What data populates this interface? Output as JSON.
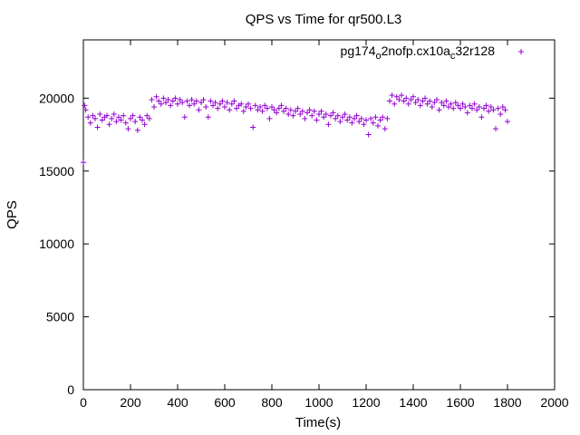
{
  "chart_data": {
    "type": "scatter",
    "title": "QPS vs Time for qr500.L3",
    "xlabel": "Time(s)",
    "ylabel": "QPS",
    "xlim": [
      0,
      2000
    ],
    "ylim": [
      0,
      24000
    ],
    "x_ticks": [
      0,
      200,
      400,
      600,
      800,
      1000,
      1200,
      1400,
      1600,
      1800,
      2000
    ],
    "y_ticks": [
      0,
      5000,
      10000,
      15000,
      20000
    ],
    "grid": false,
    "legend_position": "top-right",
    "series": [
      {
        "name": "pg174_o2nofp.cx10a_c32r128",
        "legend_parts": [
          {
            "text": "pg174",
            "sub": false
          },
          {
            "text": "o",
            "sub": true
          },
          {
            "text": "2nofp.cx10a",
            "sub": false
          },
          {
            "text": "c",
            "sub": true
          },
          {
            "text": "32r128",
            "sub": false
          }
        ],
        "color": "#9400d3",
        "marker": "plus",
        "points": [
          [
            0,
            15600
          ],
          [
            5,
            19500
          ],
          [
            10,
            19200
          ],
          [
            20,
            18700
          ],
          [
            30,
            18300
          ],
          [
            40,
            18800
          ],
          [
            50,
            18600
          ],
          [
            60,
            18000
          ],
          [
            70,
            18900
          ],
          [
            80,
            18500
          ],
          [
            90,
            18700
          ],
          [
            100,
            18800
          ],
          [
            110,
            18200
          ],
          [
            120,
            18600
          ],
          [
            130,
            18900
          ],
          [
            140,
            18400
          ],
          [
            150,
            18700
          ],
          [
            160,
            18500
          ],
          [
            170,
            18800
          ],
          [
            180,
            18300
          ],
          [
            190,
            17900
          ],
          [
            200,
            18600
          ],
          [
            210,
            18800
          ],
          [
            220,
            18400
          ],
          [
            230,
            17800
          ],
          [
            240,
            18700
          ],
          [
            250,
            18500
          ],
          [
            260,
            18200
          ],
          [
            270,
            18800
          ],
          [
            280,
            18600
          ],
          [
            290,
            19900
          ],
          [
            300,
            19400
          ],
          [
            310,
            20100
          ],
          [
            320,
            19800
          ],
          [
            330,
            19600
          ],
          [
            340,
            20000
          ],
          [
            350,
            19700
          ],
          [
            360,
            19900
          ],
          [
            370,
            19500
          ],
          [
            380,
            19800
          ],
          [
            390,
            20000
          ],
          [
            400,
            19600
          ],
          [
            410,
            19900
          ],
          [
            420,
            19700
          ],
          [
            430,
            18700
          ],
          [
            440,
            19800
          ],
          [
            450,
            19500
          ],
          [
            460,
            19900
          ],
          [
            470,
            19600
          ],
          [
            480,
            19800
          ],
          [
            490,
            19200
          ],
          [
            500,
            19700
          ],
          [
            510,
            19900
          ],
          [
            520,
            19400
          ],
          [
            530,
            18700
          ],
          [
            540,
            19800
          ],
          [
            550,
            19500
          ],
          [
            560,
            19700
          ],
          [
            570,
            19300
          ],
          [
            580,
            19600
          ],
          [
            590,
            19800
          ],
          [
            600,
            19400
          ],
          [
            610,
            19700
          ],
          [
            620,
            19200
          ],
          [
            630,
            19600
          ],
          [
            640,
            19800
          ],
          [
            650,
            19300
          ],
          [
            660,
            19500
          ],
          [
            670,
            19600
          ],
          [
            680,
            19100
          ],
          [
            690,
            19400
          ],
          [
            700,
            19600
          ],
          [
            710,
            19300
          ],
          [
            720,
            18000
          ],
          [
            730,
            19500
          ],
          [
            740,
            19200
          ],
          [
            750,
            19400
          ],
          [
            760,
            19100
          ],
          [
            770,
            19500
          ],
          [
            780,
            19300
          ],
          [
            790,
            18600
          ],
          [
            800,
            19400
          ],
          [
            810,
            19200
          ],
          [
            820,
            19000
          ],
          [
            830,
            19300
          ],
          [
            840,
            19500
          ],
          [
            850,
            19100
          ],
          [
            860,
            19300
          ],
          [
            870,
            18900
          ],
          [
            880,
            19200
          ],
          [
            890,
            18800
          ],
          [
            900,
            19100
          ],
          [
            910,
            19300
          ],
          [
            920,
            18900
          ],
          [
            930,
            19100
          ],
          [
            940,
            18600
          ],
          [
            950,
            19000
          ],
          [
            960,
            19200
          ],
          [
            970,
            18800
          ],
          [
            980,
            19100
          ],
          [
            990,
            18500
          ],
          [
            1000,
            18900
          ],
          [
            1010,
            19100
          ],
          [
            1020,
            18700
          ],
          [
            1030,
            18900
          ],
          [
            1040,
            18200
          ],
          [
            1050,
            18800
          ],
          [
            1060,
            19000
          ],
          [
            1070,
            18600
          ],
          [
            1080,
            18800
          ],
          [
            1090,
            18400
          ],
          [
            1100,
            18700
          ],
          [
            1110,
            18900
          ],
          [
            1120,
            18500
          ],
          [
            1130,
            18700
          ],
          [
            1140,
            18300
          ],
          [
            1150,
            18600
          ],
          [
            1160,
            18800
          ],
          [
            1170,
            18400
          ],
          [
            1180,
            18600
          ],
          [
            1190,
            18200
          ],
          [
            1200,
            18500
          ],
          [
            1210,
            17500
          ],
          [
            1220,
            18600
          ],
          [
            1230,
            18300
          ],
          [
            1240,
            18700
          ],
          [
            1250,
            18100
          ],
          [
            1260,
            18500
          ],
          [
            1270,
            18700
          ],
          [
            1280,
            17900
          ],
          [
            1290,
            18600
          ],
          [
            1300,
            19800
          ],
          [
            1310,
            20200
          ],
          [
            1320,
            19600
          ],
          [
            1330,
            20100
          ],
          [
            1340,
            19900
          ],
          [
            1350,
            20200
          ],
          [
            1360,
            19800
          ],
          [
            1370,
            20000
          ],
          [
            1380,
            19600
          ],
          [
            1390,
            19900
          ],
          [
            1400,
            20100
          ],
          [
            1410,
            19700
          ],
          [
            1420,
            19900
          ],
          [
            1430,
            19500
          ],
          [
            1440,
            19800
          ],
          [
            1450,
            20000
          ],
          [
            1460,
            19600
          ],
          [
            1470,
            19800
          ],
          [
            1480,
            19400
          ],
          [
            1490,
            19700
          ],
          [
            1500,
            19900
          ],
          [
            1510,
            19200
          ],
          [
            1520,
            19700
          ],
          [
            1530,
            19500
          ],
          [
            1540,
            19800
          ],
          [
            1550,
            19400
          ],
          [
            1560,
            19600
          ],
          [
            1570,
            19300
          ],
          [
            1580,
            19700
          ],
          [
            1590,
            19500
          ],
          [
            1600,
            19300
          ],
          [
            1610,
            19600
          ],
          [
            1620,
            19400
          ],
          [
            1630,
            19000
          ],
          [
            1640,
            19500
          ],
          [
            1650,
            19300
          ],
          [
            1660,
            19600
          ],
          [
            1670,
            19200
          ],
          [
            1680,
            19400
          ],
          [
            1690,
            18700
          ],
          [
            1700,
            19300
          ],
          [
            1710,
            19500
          ],
          [
            1720,
            19100
          ],
          [
            1730,
            19400
          ],
          [
            1740,
            19200
          ],
          [
            1750,
            17900
          ],
          [
            1760,
            19300
          ],
          [
            1770,
            18900
          ],
          [
            1780,
            19400
          ],
          [
            1790,
            19200
          ],
          [
            1800,
            18400
          ]
        ]
      }
    ]
  }
}
